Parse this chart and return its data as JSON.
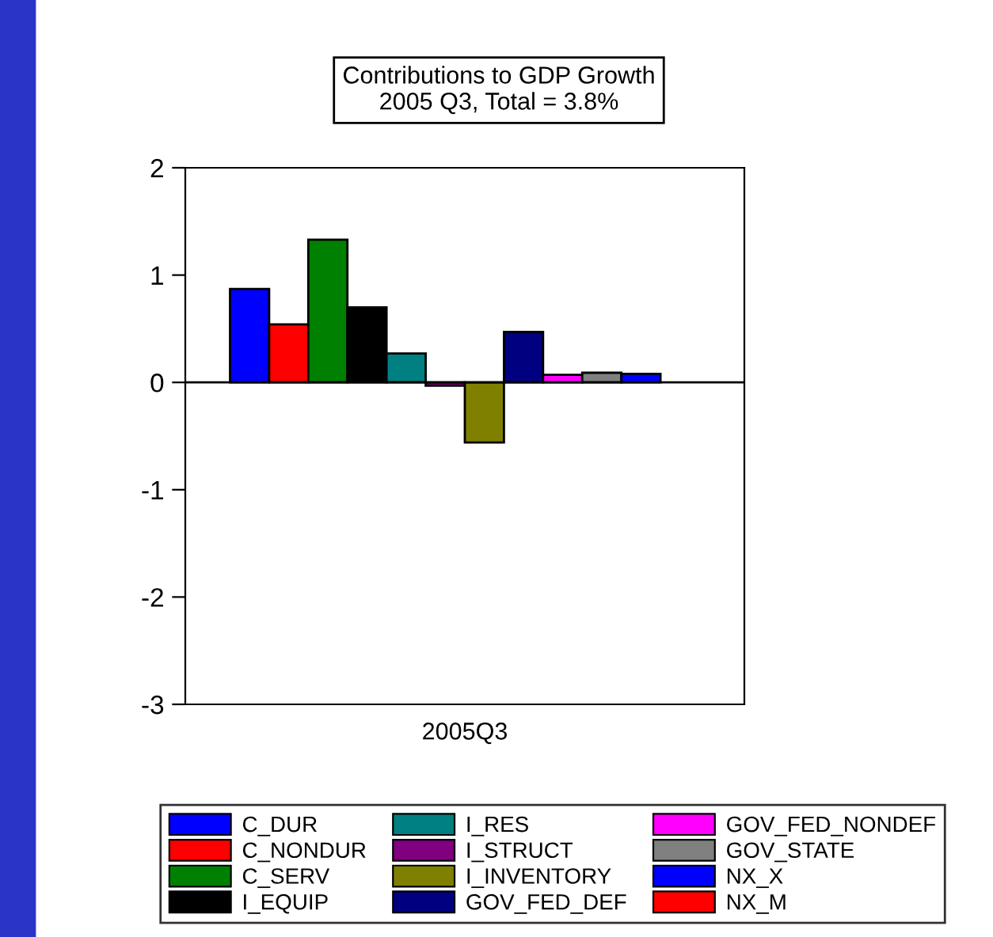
{
  "chart_data": {
    "type": "bar",
    "title": "Contributions to GDP Growth\n2005 Q3, Total = 3.8%",
    "categories": [
      "2005Q3"
    ],
    "series": [
      {
        "name": "C_DUR",
        "color": "#0000ff",
        "values": [
          0.87
        ]
      },
      {
        "name": "C_NONDUR",
        "color": "#ff0000",
        "values": [
          0.54
        ]
      },
      {
        "name": "C_SERV",
        "color": "#008000",
        "values": [
          1.33
        ]
      },
      {
        "name": "I_EQUIP",
        "color": "#000000",
        "values": [
          0.7
        ]
      },
      {
        "name": "I_RES",
        "color": "#008080",
        "values": [
          0.27
        ]
      },
      {
        "name": "I_STRUCT",
        "color": "#800080",
        "values": [
          -0.03
        ]
      },
      {
        "name": "I_INVENTORY",
        "color": "#808000",
        "values": [
          -0.56
        ]
      },
      {
        "name": "GOV_FED_DEF",
        "color": "#000080",
        "values": [
          0.47
        ]
      },
      {
        "name": "GOV_FED_NONDEF",
        "color": "#ff00ff",
        "values": [
          0.07
        ]
      },
      {
        "name": "GOV_STATE",
        "color": "#808080",
        "values": [
          0.09
        ]
      },
      {
        "name": "NX_X",
        "color": "#0000ff",
        "values": [
          0.08
        ]
      },
      {
        "name": "NX_M",
        "color": "#ff0000",
        "values": [
          null
        ]
      }
    ],
    "ylim": [
      -3,
      2
    ],
    "yticks": [
      -3,
      -2,
      -1,
      0,
      1,
      2
    ],
    "ref_lines": [
      {
        "axis": "y",
        "value": 0,
        "color": "#000000"
      }
    ],
    "grid": false,
    "legend": "bottom"
  }
}
